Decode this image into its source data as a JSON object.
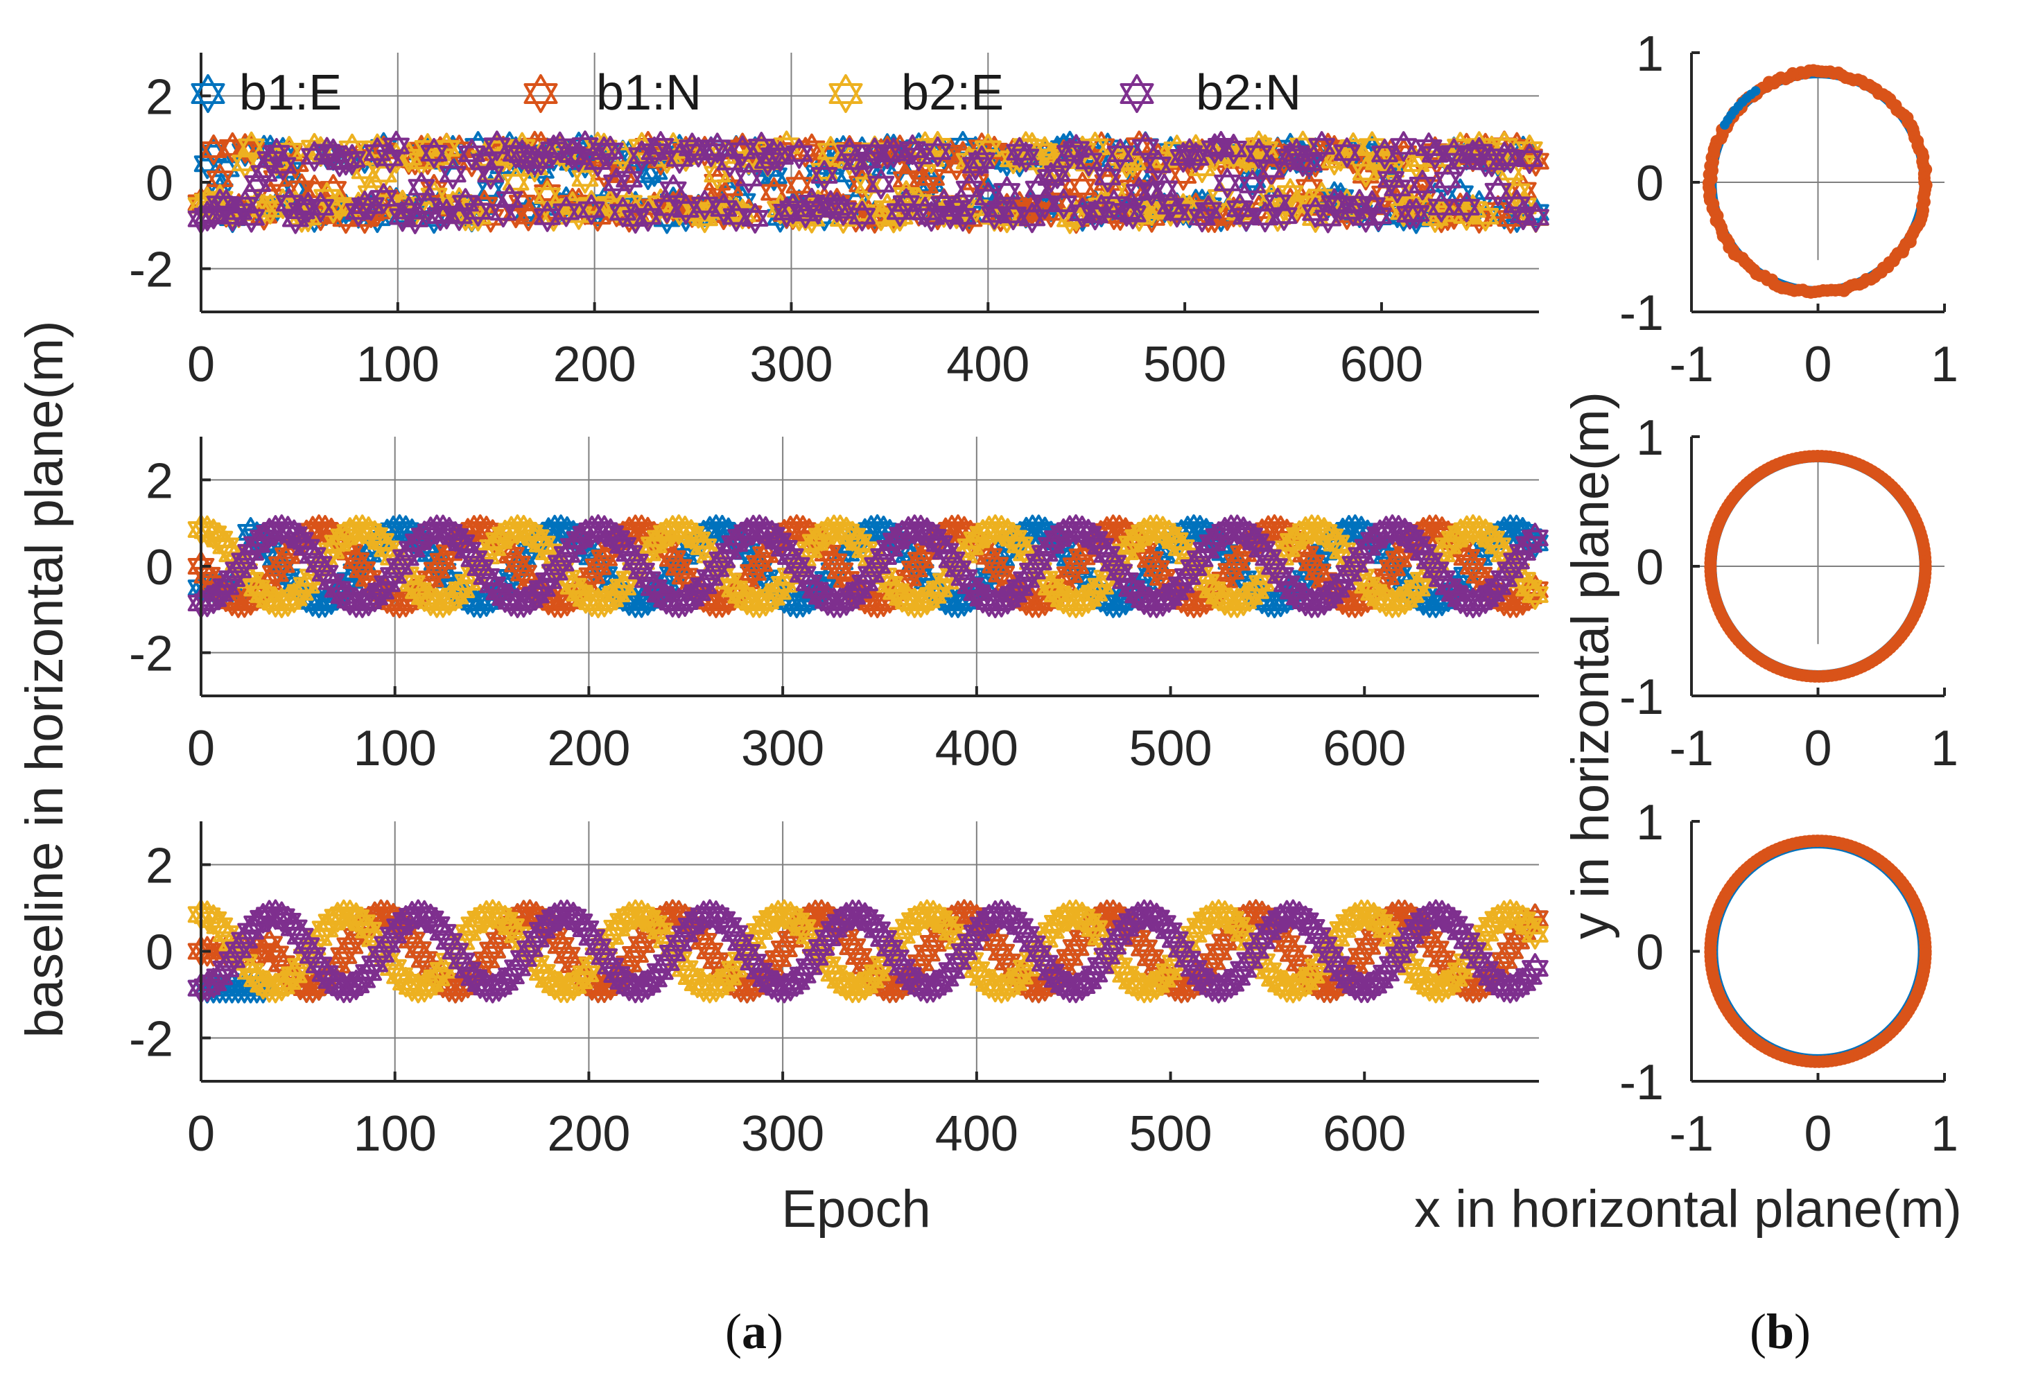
{
  "colors": {
    "b1E": "#0072BD",
    "b1N": "#D95319",
    "b2E": "#EDB120",
    "b2N": "#7E2F8E",
    "circle": "#D95319",
    "circleInner": "#0072BD"
  },
  "legend": [
    {
      "key": "b1E",
      "label": "b1:E"
    },
    {
      "key": "b1N",
      "label": "b1:N"
    },
    {
      "key": "b2E",
      "label": "b2:E"
    },
    {
      "key": "b2N",
      "label": "b2:N"
    }
  ],
  "labels": {
    "ylabel": "baseline in horizontal plane(m)",
    "xlabel": "Epoch",
    "ylabel_b": "y in horizontal plane(m)",
    "xlabel_b": "x in horizontal plane(m)",
    "caption_a": "a",
    "caption_b": "b"
  },
  "chart_data": [
    {
      "type": "scatter",
      "panel": "a1",
      "title": "",
      "xlabel": "",
      "ylabel": "baseline in horizontal plane(m)",
      "xlim": [
        0,
        680
      ],
      "ylim": [
        -3,
        3
      ],
      "xticks": [
        "0",
        "100",
        "200",
        "300",
        "400",
        "500",
        "600"
      ],
      "yticks": [
        "-2",
        "0",
        "2"
      ],
      "series": [
        {
          "name": "b1:E",
          "pattern": "noisy",
          "amplitude": 0.85
        },
        {
          "name": "b1:N",
          "pattern": "noisy",
          "amplitude": 0.85
        },
        {
          "name": "b2:E",
          "pattern": "noisy",
          "amplitude": 0.85
        },
        {
          "name": "b2:N",
          "pattern": "noisy",
          "amplitude": 0.85
        }
      ]
    },
    {
      "type": "scatter",
      "panel": "a2",
      "xlim": [
        0,
        690
      ],
      "ylim": [
        -3,
        3
      ],
      "xticks": [
        "0",
        "100",
        "200",
        "300",
        "400",
        "500",
        "600"
      ],
      "yticks": [
        "-2",
        "0",
        "2"
      ],
      "series": [
        {
          "name": "b1:E",
          "pattern": "sinusoid",
          "amplitude": 0.85,
          "period_epochs": 82,
          "start_epoch": 0,
          "initial_value": -0.5
        },
        {
          "name": "b1:N",
          "pattern": "sinusoid",
          "amplitude": 0.85,
          "period_epochs": 82,
          "phase_deg": 180
        },
        {
          "name": "b2:E",
          "pattern": "sinusoid",
          "amplitude": 0.85,
          "period_epochs": 82,
          "phase_deg": 90
        },
        {
          "name": "b2:N",
          "pattern": "sinusoid",
          "amplitude": 0.85,
          "period_epochs": 82,
          "phase_deg": 270
        }
      ]
    },
    {
      "type": "scatter",
      "panel": "a3",
      "xlim": [
        0,
        690
      ],
      "ylim": [
        -3,
        3
      ],
      "xticks": [
        "0",
        "100",
        "200",
        "300",
        "400",
        "500",
        "600"
      ],
      "yticks": [
        "-2",
        "0",
        "2"
      ],
      "xlabel": "Epoch",
      "series": [
        {
          "name": "b1:E",
          "pattern": "sinusoid",
          "amplitude": 0.85,
          "period_epochs": 75,
          "initial_value": -0.85
        },
        {
          "name": "b1:N",
          "pattern": "sinusoid",
          "amplitude": 0.85,
          "period_epochs": 75,
          "initial_value": 0.0
        },
        {
          "name": "b2:E",
          "pattern": "sinusoid",
          "amplitude": 0.85,
          "period_epochs": 75,
          "phase_deg": 90
        },
        {
          "name": "b2:N",
          "pattern": "sinusoid",
          "amplitude": 0.85,
          "period_epochs": 75,
          "phase_deg": 270
        }
      ]
    },
    {
      "type": "scatter",
      "panel": "b1",
      "shape": "circle",
      "radius": 0.85,
      "xlim": [
        -1,
        1
      ],
      "ylim": [
        -1,
        1
      ],
      "xticks": [
        "-1",
        "0",
        "1"
      ],
      "yticks": [
        "-1",
        "0",
        "1"
      ]
    },
    {
      "type": "scatter",
      "panel": "b2",
      "shape": "circle",
      "radius": 0.85,
      "xlim": [
        -1,
        1
      ],
      "ylim": [
        -1,
        1
      ],
      "xticks": [
        "-1",
        "0",
        "1"
      ],
      "yticks": [
        "-1",
        "0",
        "1"
      ]
    },
    {
      "type": "scatter",
      "panel": "b3",
      "shape": "circle",
      "radius": 0.85,
      "xlim": [
        -1,
        1
      ],
      "ylim": [
        -1,
        1
      ],
      "xticks": [
        "-1",
        "0",
        "1"
      ],
      "yticks": [
        "-1",
        "0",
        "1"
      ],
      "xlabel": "x in horizontal plane(m)"
    }
  ]
}
